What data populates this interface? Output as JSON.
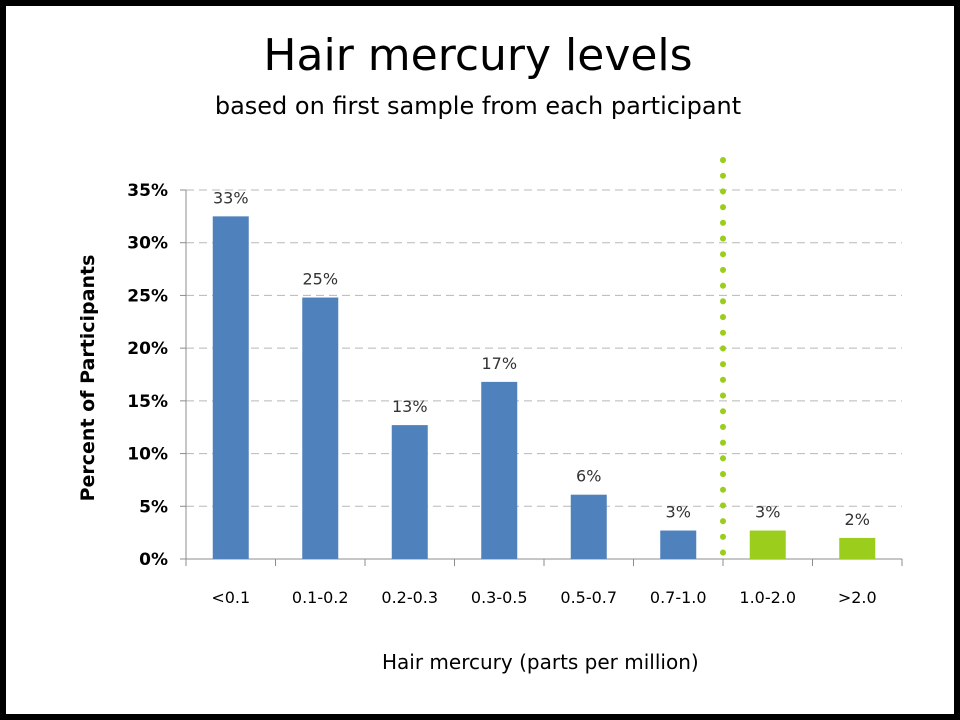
{
  "chart_data": {
    "type": "bar",
    "title": "Hair mercury levels",
    "subtitle": "based on first sample from each participant",
    "xlabel": "Hair mercury (parts per million)",
    "ylabel": "Percent of Participants",
    "categories": [
      "<0.1",
      "0.1-0.2",
      "0.2-0.3",
      "0.3-0.5",
      "0.5-0.7",
      "0.7-1.0",
      "1.0-2.0",
      ">2.0"
    ],
    "values": [
      32.5,
      24.8,
      12.7,
      16.8,
      6.1,
      2.7,
      2.7,
      2.0
    ],
    "data_labels": [
      "33%",
      "25%",
      "13%",
      "17%",
      "6%",
      "3%",
      "3%",
      "2%"
    ],
    "bar_colors": [
      "#4f81bd",
      "#4f81bd",
      "#4f81bd",
      "#4f81bd",
      "#4f81bd",
      "#4f81bd",
      "#9acd1c",
      "#9acd1c"
    ],
    "ylim": [
      0,
      35
    ],
    "yticks": [
      0,
      5,
      10,
      15,
      20,
      25,
      30,
      35
    ],
    "ytick_labels": [
      "0%",
      "5%",
      "10%",
      "15%",
      "20%",
      "25%",
      "30%",
      "35%"
    ],
    "grid": "horizontal dashed",
    "reference_line": {
      "between_categories": [
        "0.7-1.0",
        "1.0-2.0"
      ],
      "style": "dotted",
      "color": "#9acd1c"
    }
  }
}
